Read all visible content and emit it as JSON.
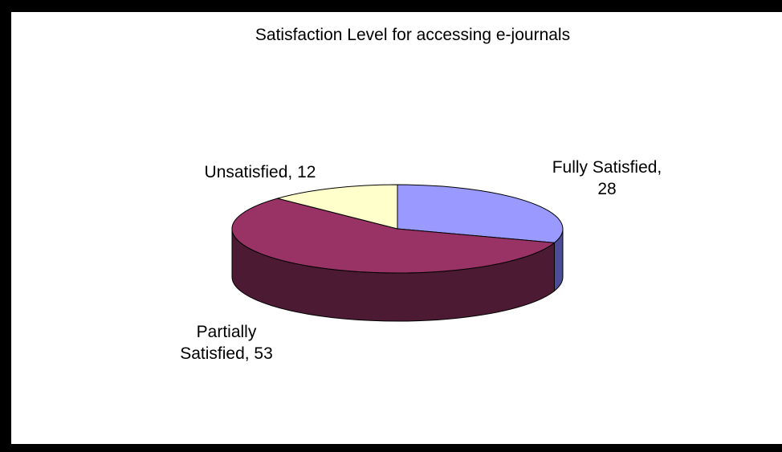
{
  "chart_data": {
    "type": "pie",
    "title": "Satisfaction Level for accessing e-journals",
    "three_d": true,
    "legend": "none",
    "slices": [
      {
        "name": "Fully Satisfied",
        "value": 28,
        "color": "#9999ff",
        "side_color": "#4c4c99",
        "label_lines": [
          "Fully Satisfied,",
          "28"
        ]
      },
      {
        "name": "Partially Satisfied",
        "value": 53,
        "color": "#993366",
        "side_color": "#4c1a33",
        "label_lines": [
          "Partially",
          "Satisfied, 53"
        ]
      },
      {
        "name": "Unsatisfied",
        "value": 12,
        "color": "#ffffcc",
        "side_color": "#99997a",
        "label_lines": [
          "Unsatisfied, 12"
        ]
      }
    ]
  }
}
